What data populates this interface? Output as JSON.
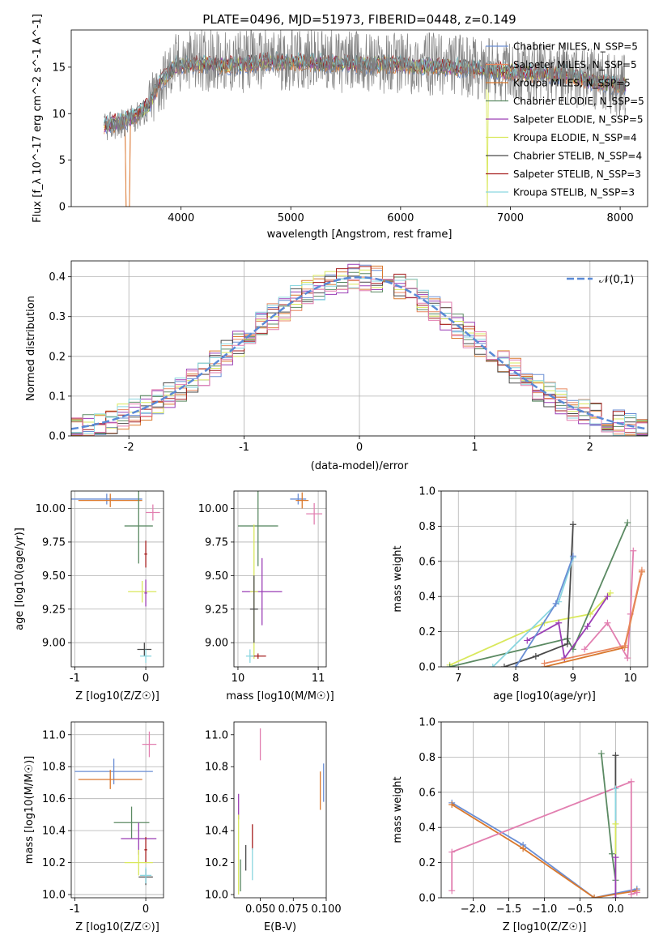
{
  "figure": {
    "colors": {
      "Chabrier MILES": "#6a8ed4",
      "Salpeter MILES": "#e8875f",
      "Kroupa MILES": "#d9782d",
      "Chabrier ELODIE": "#5b8a63",
      "Salpeter ELODIE": "#9a3db5",
      "Kroupa ELODIE": "#d9e85c",
      "Chabrier STELIB": "#4a4a4a",
      "Salpeter STELIB": "#a51f1f",
      "Kroupa STELIB": "#8ad6e0",
      "extra": "#e27fb0"
    }
  },
  "chart_data": [
    {
      "id": "spectrum",
      "type": "line",
      "title": "PLATE=0496, MJD=51973, FIBERID=0448, z=0.149",
      "xlabel": "wavelength [Angstrom, rest frame]",
      "ylabel": "Flux [f_λ 10^-17 erg cm^-2 s^-1 A^-1]",
      "xlim": [
        3000,
        8250
      ],
      "ylim": [
        0,
        19
      ],
      "xticks": [
        "4000",
        "5000",
        "6000",
        "7000",
        "8000"
      ],
      "yticks": [
        "0",
        "5",
        "10",
        "15"
      ],
      "data_color": "#7f7f7f",
      "data_anchors": [
        [
          3300,
          8.5
        ],
        [
          3500,
          9.0
        ],
        [
          3700,
          10.5
        ],
        [
          3800,
          13.0
        ],
        [
          3950,
          15.5
        ],
        [
          4200,
          15.8
        ],
        [
          4500,
          15.5
        ],
        [
          4800,
          16.0
        ],
        [
          5000,
          15.8
        ],
        [
          5500,
          15.6
        ],
        [
          6000,
          15.5
        ],
        [
          6500,
          15.2
        ],
        [
          6800,
          14.8
        ],
        [
          7000,
          14.6
        ],
        [
          7500,
          14.3
        ],
        [
          7800,
          13.5
        ],
        [
          8000,
          13.0
        ]
      ],
      "model_anchors": [
        [
          3300,
          8.8
        ],
        [
          3500,
          9.2
        ],
        [
          3700,
          10.8
        ],
        [
          3800,
          13.2
        ],
        [
          3950,
          15.2
        ],
        [
          4200,
          15.3
        ],
        [
          4500,
          15.2
        ],
        [
          4800,
          15.6
        ],
        [
          5000,
          15.5
        ],
        [
          5500,
          15.4
        ],
        [
          6000,
          15.2
        ],
        [
          6500,
          15.0
        ],
        [
          6800,
          14.7
        ],
        [
          7000,
          14.5
        ],
        [
          7500,
          14.2
        ],
        [
          7800,
          13.4
        ],
        [
          8000,
          13.0
        ]
      ],
      "legend": [
        "Chabrier MILES, N_SSP=5",
        "Salpeter MILES, N_SSP=5",
        "Kroupa MILES, N_SSP=5",
        "Chabrier ELODIE, N_SSP=5",
        "Salpeter ELODIE, N_SSP=5",
        "Kroupa ELODIE, N_SSP=4",
        "Chabrier STELIB, N_SSP=4",
        "Salpeter STELIB, N_SSP=3",
        "Kroupa STELIB, N_SSP=3"
      ],
      "legend_placement": "top-right"
    },
    {
      "id": "residuals",
      "type": "line",
      "xlabel": "(data-model)/error",
      "ylabel": "Normed distribution",
      "xlim": [
        -2.5,
        2.5
      ],
      "ylim": [
        0,
        0.44
      ],
      "xticks": [
        "-2",
        "-1",
        "0",
        "1",
        "2"
      ],
      "yticks": [
        "0.0",
        "0.1",
        "0.2",
        "0.3",
        "0.4"
      ],
      "grid": true,
      "bins": [
        -2.5,
        2.5,
        50
      ],
      "gaussian_label": "𝒩(0,1)",
      "legend_placement": "top-right"
    },
    {
      "id": "p-age-Z",
      "type": "scatter",
      "xlabel": "Z [log10(Z/Z☉)]",
      "ylabel": "age  [log10(age/yr)]",
      "xlim": [
        -1.05,
        0.25
      ],
      "ylim": [
        8.82,
        10.13
      ],
      "xticks": [
        -1,
        0
      ],
      "xticklabels": [
        "-1",
        "0"
      ],
      "yticks": [
        9.0,
        9.25,
        9.5,
        9.75,
        10.0
      ],
      "yticklabels": [
        "9.00",
        "9.25",
        "9.50",
        "9.75",
        "10.00"
      ],
      "grid": true,
      "points": [
        {
          "x": -0.55,
          "y": 10.07,
          "xe": 0.5,
          "ye": 0.04,
          "c": "#6a8ed4"
        },
        {
          "x": -0.5,
          "y": 10.06,
          "xe": 0.45,
          "ye": 0.05,
          "c": "#d9782d"
        },
        {
          "x": 0.1,
          "y": 9.97,
          "xe": 0.1,
          "ye": 0.06,
          "c": "#e27fb0"
        },
        {
          "x": -0.1,
          "y": 9.87,
          "xe": 0.2,
          "ye": 0.28,
          "c": "#5b8a63"
        },
        {
          "x": 0.0,
          "y": 9.66,
          "xe": 0.02,
          "ye": 0.1,
          "c": "#a51f1f"
        },
        {
          "x": -0.05,
          "y": 9.38,
          "xe": 0.2,
          "ye": 0.08,
          "c": "#d9e85c"
        },
        {
          "x": 0.0,
          "y": 9.37,
          "xe": 0.02,
          "ye": 0.1,
          "c": "#9a3db5"
        },
        {
          "x": -0.02,
          "y": 8.95,
          "xe": 0.1,
          "ye": 0.05,
          "c": "#4a4a4a"
        },
        {
          "x": 0.0,
          "y": 8.9,
          "xe": 0.08,
          "ye": 0.05,
          "c": "#8ad6e0"
        }
      ]
    },
    {
      "id": "p-age-mass",
      "type": "scatter",
      "xlabel": "mass [log10(M/M☉)]",
      "ylabel": "",
      "xlim": [
        9.95,
        11.1
      ],
      "ylim": [
        8.82,
        10.13
      ],
      "xticks": [
        10,
        11
      ],
      "xticklabels": [
        "10",
        "11"
      ],
      "yticks": [
        9.0,
        9.25,
        9.5,
        9.75,
        10.0
      ],
      "yticklabels": [
        "9.00",
        "9.25",
        "9.50",
        "9.75",
        "10.00"
      ],
      "grid": true,
      "points": [
        {
          "x": 10.75,
          "y": 10.07,
          "xe": 0.1,
          "ye": 0.04,
          "c": "#6a8ed4"
        },
        {
          "x": 10.8,
          "y": 10.06,
          "xe": 0.08,
          "ye": 0.06,
          "c": "#d9782d"
        },
        {
          "x": 10.95,
          "y": 9.96,
          "xe": 0.1,
          "ye": 0.08,
          "c": "#e27fb0"
        },
        {
          "x": 10.25,
          "y": 9.87,
          "xe": 0.25,
          "ye": 0.3,
          "c": "#5b8a63"
        },
        {
          "x": 10.3,
          "y": 9.38,
          "xe": 0.25,
          "ye": 0.25,
          "c": "#9a3db5"
        },
        {
          "x": 10.2,
          "y": 9.38,
          "xe": 0.05,
          "ye": 0.5,
          "c": "#d9e85c"
        },
        {
          "x": 10.2,
          "y": 9.25,
          "xe": 0.05,
          "ye": 0.25,
          "c": "#4a4a4a"
        },
        {
          "x": 10.25,
          "y": 8.9,
          "xe": 0.1,
          "ye": 0.02,
          "c": "#a51f1f"
        },
        {
          "x": 10.15,
          "y": 8.9,
          "xe": 0.05,
          "ye": 0.05,
          "c": "#8ad6e0"
        }
      ]
    },
    {
      "id": "p-mw-age",
      "type": "line",
      "xlabel": "age  [log10(age/yr)]",
      "ylabel": "mass weight",
      "xlim": [
        6.7,
        10.3
      ],
      "ylim": [
        0,
        1.0
      ],
      "xticks": [
        7,
        8,
        9,
        10
      ],
      "xticklabels": [
        "7",
        "8",
        "9",
        "10"
      ],
      "yticks": [
        0,
        0.2,
        0.4,
        0.6,
        0.8,
        1.0
      ],
      "yticklabels": [
        "0.0",
        "0.2",
        "0.4",
        "0.6",
        "0.8",
        "1.0"
      ],
      "grid": true,
      "series": [
        {
          "c": "#d9e85c",
          "pts": [
            [
              6.85,
              0.01
            ],
            [
              8.5,
              0.25
            ],
            [
              9.3,
              0.3
            ],
            [
              9.65,
              0.42
            ]
          ]
        },
        {
          "c": "#5b8a63",
          "pts": [
            [
              6.85,
              0.0
            ],
            [
              8.9,
              0.16
            ],
            [
              9.0,
              0.1
            ],
            [
              9.95,
              0.82
            ]
          ]
        },
        {
          "c": "#9a3db5",
          "pts": [
            [
              8.2,
              0.15
            ],
            [
              8.75,
              0.25
            ],
            [
              8.85,
              0.05
            ],
            [
              9.25,
              0.23
            ],
            [
              9.6,
              0.4
            ]
          ]
        },
        {
          "c": "#4a4a4a",
          "pts": [
            [
              7.8,
              0.0
            ],
            [
              8.35,
              0.06
            ],
            [
              8.9,
              0.13
            ],
            [
              9.0,
              0.81
            ]
          ]
        },
        {
          "c": "#8ad6e0",
          "pts": [
            [
              7.6,
              0.0
            ],
            [
              8.75,
              0.37
            ],
            [
              9.0,
              0.62
            ]
          ]
        },
        {
          "c": "#6a8ed4",
          "pts": [
            [
              8.0,
              0.0
            ],
            [
              8.7,
              0.36
            ],
            [
              9.0,
              0.63
            ]
          ]
        },
        {
          "c": "#e27fb0",
          "pts": [
            [
              9.2,
              0.1
            ],
            [
              9.6,
              0.25
            ],
            [
              9.95,
              0.05
            ],
            [
              10.0,
              0.3
            ],
            [
              10.05,
              0.66
            ]
          ]
        },
        {
          "c": "#d9782d",
          "pts": [
            [
              8.5,
              0.0
            ],
            [
              9.9,
              0.11
            ],
            [
              10.2,
              0.54
            ]
          ]
        },
        {
          "c": "#e8875f",
          "pts": [
            [
              8.5,
              0.02
            ],
            [
              9.9,
              0.12
            ],
            [
              10.2,
              0.55
            ]
          ]
        }
      ]
    },
    {
      "id": "p-mass-Z",
      "type": "scatter",
      "xlabel": "Z [log10(Z/Z☉)]",
      "ylabel": "mass [log10(M/M☉)]",
      "xlim": [
        -1.05,
        0.25
      ],
      "ylim": [
        9.98,
        11.08
      ],
      "xticks": [
        -1,
        0
      ],
      "xticklabels": [
        "-1",
        "0"
      ],
      "yticks": [
        10.0,
        10.2,
        10.4,
        10.6,
        10.8,
        11.0
      ],
      "yticklabels": [
        "10.0",
        "10.2",
        "10.4",
        "10.6",
        "10.8",
        "11.0"
      ],
      "grid": true,
      "points": [
        {
          "x": -0.45,
          "y": 10.77,
          "xe": 0.55,
          "ye": 0.08,
          "c": "#6a8ed4"
        },
        {
          "x": -0.5,
          "y": 10.72,
          "xe": 0.45,
          "ye": 0.06,
          "c": "#d9782d"
        },
        {
          "x": 0.05,
          "y": 10.94,
          "xe": 0.1,
          "ye": 0.08,
          "c": "#e27fb0"
        },
        {
          "x": -0.2,
          "y": 10.45,
          "xe": 0.25,
          "ye": 0.1,
          "c": "#5b8a63"
        },
        {
          "x": -0.1,
          "y": 10.35,
          "xe": 0.25,
          "ye": 0.1,
          "c": "#9a3db5"
        },
        {
          "x": 0.0,
          "y": 10.28,
          "xe": 0.02,
          "ye": 0.08,
          "c": "#a51f1f"
        },
        {
          "x": -0.1,
          "y": 10.2,
          "xe": 0.2,
          "ye": 0.08,
          "c": "#d9e85c"
        },
        {
          "x": 0.0,
          "y": 10.11,
          "xe": 0.1,
          "ye": 0.05,
          "c": "#4a4a4a"
        },
        {
          "x": 0.0,
          "y": 10.12,
          "xe": 0.08,
          "ye": 0.05,
          "c": "#8ad6e0"
        }
      ]
    },
    {
      "id": "p-mass-ebv",
      "type": "scatter",
      "xlabel": "E(B-V)",
      "ylabel": "",
      "xlim": [
        0.03,
        0.1
      ],
      "ylim": [
        9.98,
        11.08
      ],
      "xticks": [
        0.05,
        0.075,
        0.1
      ],
      "xticklabels": [
        "0.050",
        "0.075",
        "0.100"
      ],
      "yticks": [
        10.0,
        10.2,
        10.4,
        10.6,
        10.8,
        11.0
      ],
      "yticklabels": [
        "10.0",
        "10.2",
        "10.4",
        "10.6",
        "10.8",
        "11.0"
      ],
      "grid": false,
      "points": [
        {
          "x": 0.05,
          "y": 10.94,
          "xe": 0,
          "ye": 0.1,
          "c": "#e27fb0"
        },
        {
          "x": 0.098,
          "y": 10.7,
          "xe": 0,
          "ye": 0.12,
          "c": "#6a8ed4"
        },
        {
          "x": 0.0955,
          "y": 10.65,
          "xe": 0,
          "ye": 0.12,
          "c": "#d9782d"
        },
        {
          "x": 0.0335,
          "y": 10.55,
          "xe": 0,
          "ye": 0.08,
          "c": "#9a3db5"
        },
        {
          "x": 0.0335,
          "y": 10.25,
          "xe": 0,
          "ye": 0.25,
          "c": "#d9e85c"
        },
        {
          "x": 0.044,
          "y": 10.36,
          "xe": 0,
          "ye": 0.08,
          "c": "#a51f1f"
        },
        {
          "x": 0.039,
          "y": 10.23,
          "xe": 0,
          "ye": 0.08,
          "c": "#4a4a4a"
        },
        {
          "x": 0.044,
          "y": 10.19,
          "xe": 0,
          "ye": 0.1,
          "c": "#8ad6e0"
        },
        {
          "x": 0.035,
          "y": 10.12,
          "xe": 0,
          "ye": 0.1,
          "c": "#5b8a63"
        }
      ]
    },
    {
      "id": "p-mw-Z",
      "type": "line",
      "xlabel": "Z [log10(Z/Z☉)]",
      "ylabel": "mass weight",
      "xlim": [
        -2.45,
        0.45
      ],
      "ylim": [
        0,
        1.0
      ],
      "xticks": [
        -2.0,
        -1.5,
        -1.0,
        -0.5,
        0.0
      ],
      "xticklabels": [
        "−2.0",
        "−1.5",
        "−1.0",
        "−0.5",
        "0.0"
      ],
      "yticks": [
        0,
        0.2,
        0.4,
        0.6,
        0.8,
        1.0
      ],
      "yticklabels": [
        "0.0",
        "0.2",
        "0.4",
        "0.6",
        "0.8",
        "1.0"
      ],
      "grid": true,
      "series": [
        {
          "c": "#6a8ed4",
          "pts": [
            [
              -2.3,
              0.54
            ],
            [
              -1.3,
              0.3
            ],
            [
              -0.3,
              0.0
            ],
            [
              0.3,
              0.05
            ]
          ]
        },
        {
          "c": "#d9782d",
          "pts": [
            [
              -2.3,
              0.53
            ],
            [
              -1.3,
              0.28
            ],
            [
              -0.3,
              0.0
            ],
            [
              0.3,
              0.04
            ]
          ]
        },
        {
          "c": "#e27fb0",
          "pts": [
            [
              -2.3,
              0.04
            ],
            [
              -2.3,
              0.26
            ],
            [
              0.22,
              0.66
            ],
            [
              0.22,
              0.02
            ],
            [
              0.3,
              0.03
            ]
          ]
        },
        {
          "c": "#5b8a63",
          "pts": [
            [
              -0.2,
              0.82
            ],
            [
              -0.05,
              0.25
            ],
            [
              0.0,
              0.1
            ]
          ]
        },
        {
          "c": "#4a4a4a",
          "pts": [
            [
              0.0,
              0.81
            ],
            [
              0.0,
              0.0
            ]
          ]
        },
        {
          "c": "#8ad6e0",
          "pts": [
            [
              0.0,
              0.62
            ],
            [
              0.0,
              0.0
            ]
          ]
        },
        {
          "c": "#d9e85c",
          "pts": [
            [
              0.0,
              0.42
            ],
            [
              0.0,
              0.0
            ]
          ]
        },
        {
          "c": "#9a3db5",
          "pts": [
            [
              0.0,
              0.23
            ],
            [
              0.0,
              0.0
            ]
          ]
        }
      ]
    }
  ]
}
